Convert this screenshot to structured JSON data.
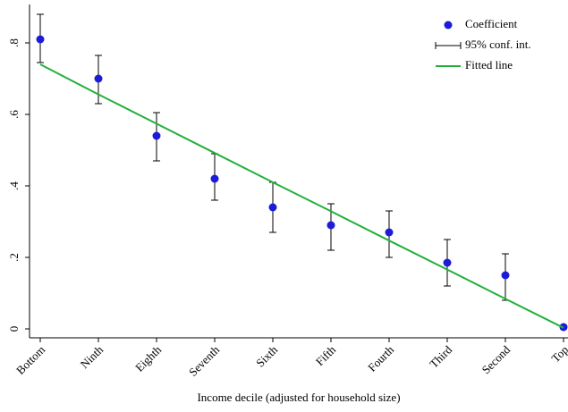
{
  "chart_data": {
    "type": "scatter",
    "x_label": "Income decile (adjusted for household size)",
    "categories": [
      "Bottom",
      "Ninth",
      "Eighth",
      "Seventh",
      "Sixth",
      "Fifth",
      "Fourth",
      "Third",
      "Second",
      "Top"
    ],
    "series": [
      {
        "name": "Coefficient",
        "type": "scatter",
        "color": "#1c1cd8",
        "values": [
          0.81,
          0.7,
          0.54,
          0.42,
          0.34,
          0.29,
          0.27,
          0.185,
          0.15,
          0.005
        ],
        "ci_name": "95% conf. int.",
        "ci_low": [
          0.745,
          0.63,
          0.47,
          0.36,
          0.27,
          0.22,
          0.2,
          0.12,
          0.08,
          0.0
        ],
        "ci_high": [
          0.88,
          0.765,
          0.605,
          0.49,
          0.41,
          0.35,
          0.33,
          0.25,
          0.21,
          0.01
        ]
      },
      {
        "name": "Fitted line",
        "type": "line",
        "color": "#22b03a",
        "values": [
          0.74,
          0.656,
          0.574,
          0.492,
          0.41,
          0.329,
          0.247,
          0.166,
          0.084,
          0.003
        ]
      }
    ],
    "ylim": [
      -0.025,
      0.9075
    ],
    "yticks": [
      0,
      {
        "value": 0.2,
        "label": ".2"
      },
      {
        "value": 0.4,
        "label": ".4"
      },
      {
        "value": 0.6,
        "label": ".6"
      },
      {
        "value": 0.8,
        "label": ".8"
      }
    ],
    "legend": "top-right"
  }
}
